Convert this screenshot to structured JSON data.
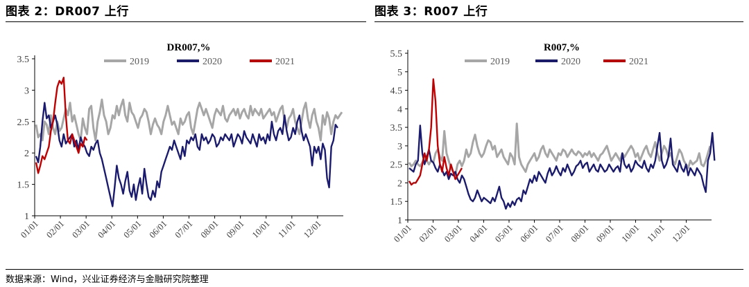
{
  "header": {
    "left_title": "图表 2：DR007 上行",
    "right_title": "图表 3：R007 上行"
  },
  "footer": {
    "source": "数据来源：Wind，兴业证券经济与金融研究院整理"
  },
  "colors": {
    "s2019": "#a6a6a6",
    "s2020": "#1a1a6e",
    "s2021": "#c00000",
    "axis": "#000000"
  },
  "chart_data": [
    {
      "type": "line",
      "title": "DR007,%",
      "xlabel": "",
      "ylabel": "",
      "x_ticks": [
        "01/01",
        "02/01",
        "03/01",
        "04/01",
        "05/01",
        "06/01",
        "07/01",
        "08/01",
        "09/01",
        "10/01",
        "11/01",
        "12/01"
      ],
      "ylim": [
        1,
        3.5
      ],
      "y_ticks": [
        "1",
        "1.5",
        "2",
        "2.5",
        "3",
        "3.5"
      ],
      "y_tick_values": [
        1,
        1.5,
        2,
        2.5,
        3,
        3.5
      ],
      "legend_position": "top",
      "grid": false,
      "series": [
        {
          "name": "2019",
          "key": "s2019",
          "values": [
            2.45,
            2.25,
            2.3,
            2.2,
            2.5,
            2.45,
            2.3,
            2.6,
            2.4,
            2.3,
            2.5,
            2.35,
            2.4,
            2.55,
            2.7,
            2.6,
            2.8,
            2.5,
            2.6,
            2.45,
            2.3,
            2.2,
            2.55,
            2.4,
            2.3,
            2.7,
            2.75,
            2.4,
            2.2,
            2.5,
            2.65,
            2.85,
            2.6,
            2.5,
            2.3,
            2.4,
            2.6,
            2.55,
            2.75,
            2.6,
            2.75,
            2.85,
            2.6,
            2.5,
            2.8,
            2.65,
            2.6,
            2.5,
            2.4,
            2.55,
            2.6,
            2.7,
            2.65,
            2.5,
            2.3,
            2.45,
            2.55,
            2.45,
            2.4,
            2.3,
            2.5,
            2.6,
            2.75,
            2.6,
            2.45,
            2.5,
            2.4,
            2.3,
            2.55,
            2.45,
            2.5,
            2.6,
            2.65,
            2.4,
            2.3,
            2.5,
            2.7,
            2.8,
            2.7,
            2.6,
            2.7,
            2.6,
            2.5,
            2.4,
            2.6,
            2.7,
            2.65,
            2.6,
            2.75,
            2.55,
            2.5,
            2.6,
            2.65,
            2.7,
            2.6,
            2.7,
            2.55,
            2.65,
            2.7,
            2.6,
            2.55,
            2.75,
            2.6,
            2.7,
            2.65,
            2.6,
            2.7,
            2.55,
            2.6,
            2.65,
            2.7,
            2.6,
            2.65,
            2.5,
            2.6,
            2.7,
            2.75,
            2.5,
            2.4,
            2.55,
            2.6,
            2.7,
            2.5,
            2.4,
            2.3,
            2.5,
            2.7,
            2.8,
            2.55,
            2.4,
            2.6,
            2.7,
            2.5,
            2.4,
            2.2,
            2.6,
            2.45,
            2.65,
            2.55,
            2.3,
            2.5,
            2.6,
            2.55,
            2.6,
            2.65
          ]
        },
        {
          "name": "2020",
          "key": "s2020",
          "values": [
            1.95,
            1.85,
            2.1,
            2.5,
            2.8,
            2.55,
            2.6,
            2.4,
            2.5,
            2.6,
            2.45,
            2.2,
            2.1,
            2.3,
            2.15,
            2.2,
            2.25,
            2.3,
            2.1,
            2.2,
            2.05,
            2.25,
            2.15,
            2.1,
            2.0,
            1.95,
            2.1,
            2.05,
            2.15,
            2.2,
            2.0,
            1.9,
            1.75,
            1.6,
            1.45,
            1.3,
            1.15,
            1.45,
            1.8,
            1.6,
            1.5,
            1.35,
            1.55,
            1.7,
            1.4,
            1.3,
            1.5,
            1.25,
            1.45,
            1.6,
            1.35,
            1.75,
            1.5,
            1.3,
            1.25,
            1.4,
            1.3,
            1.55,
            1.45,
            1.7,
            1.8,
            1.9,
            2.0,
            2.1,
            2.05,
            2.2,
            2.1,
            2.0,
            1.9,
            2.1,
            1.95,
            2.2,
            2.15,
            2.25,
            2.2,
            2.3,
            2.1,
            2.05,
            2.3,
            2.2,
            2.25,
            2.15,
            2.2,
            2.3,
            2.25,
            2.1,
            2.15,
            2.25,
            2.2,
            2.3,
            2.25,
            2.2,
            2.3,
            2.1,
            2.2,
            2.3,
            2.25,
            2.15,
            2.35,
            2.25,
            2.2,
            2.15,
            2.3,
            2.2,
            2.1,
            2.3,
            2.2,
            2.25,
            2.15,
            2.3,
            2.2,
            2.5,
            2.3,
            2.2,
            2.35,
            2.4,
            2.3,
            2.6,
            2.35,
            2.2,
            2.25,
            2.4,
            2.3,
            2.5,
            2.6,
            2.35,
            2.2,
            2.3,
            2.2,
            2.1,
            1.8,
            2.1,
            2.0,
            2.1,
            1.9,
            2.15,
            2.05,
            1.6,
            1.45,
            2.1,
            2.2,
            2.45,
            2.4
          ]
        },
        {
          "name": "2021",
          "key": "s2021",
          "values": [
            1.85,
            1.68,
            1.8,
            1.95,
            1.9,
            2.0,
            2.1,
            2.35,
            2.5,
            2.8,
            3.05,
            3.15,
            3.1,
            3.2,
            2.6,
            2.2,
            2.15,
            2.3,
            2.2,
            2.1,
            2.0,
            2.15,
            2.1,
            2.25,
            2.2
          ]
        }
      ]
    },
    {
      "type": "line",
      "title": "R007,%",
      "xlabel": "",
      "ylabel": "",
      "x_ticks": [
        "01/01",
        "02/01",
        "03/01",
        "04/01",
        "05/01",
        "06/01",
        "07/01",
        "08/01",
        "09/01",
        "10/01",
        "11/01",
        "12/01"
      ],
      "ylim": [
        1,
        5.5
      ],
      "y_ticks": [
        "1",
        "1.5",
        "2",
        "2.5",
        "3",
        "3.5",
        "4",
        "4.5",
        "5",
        "5.5"
      ],
      "y_tick_values": [
        1,
        1.5,
        2,
        2.5,
        3,
        3.5,
        4,
        4.5,
        5,
        5.5
      ],
      "legend_position": "top",
      "grid": false,
      "series": [
        {
          "name": "2019",
          "key": "s2019",
          "values": [
            2.55,
            2.45,
            2.5,
            2.6,
            2.5,
            2.45,
            2.55,
            2.7,
            2.6,
            2.5,
            2.6,
            2.55,
            2.8,
            2.9,
            2.7,
            2.6,
            3.4,
            2.8,
            2.6,
            2.4,
            2.3,
            2.2,
            2.5,
            2.6,
            2.45,
            2.6,
            2.9,
            2.7,
            2.8,
            3.1,
            3.3,
            3.0,
            2.8,
            2.7,
            2.8,
            3.0,
            3.15,
            3.1,
            2.9,
            3.0,
            2.7,
            2.8,
            2.9,
            2.7,
            2.6,
            2.5,
            2.8,
            2.7,
            2.5,
            3.6,
            2.7,
            2.5,
            2.4,
            2.3,
            2.5,
            2.6,
            2.7,
            2.8,
            2.6,
            2.7,
            2.9,
            3.0,
            2.8,
            2.7,
            2.9,
            2.8,
            2.7,
            2.6,
            2.8,
            2.75,
            2.9,
            2.85,
            2.7,
            2.8,
            2.9,
            2.8,
            2.75,
            2.85,
            2.8,
            2.7,
            2.8,
            2.75,
            2.85,
            2.7,
            2.8,
            2.7,
            2.6,
            2.75,
            2.8,
            2.9,
            3.0,
            2.8,
            2.6,
            2.7,
            2.8,
            2.7,
            2.6,
            2.8,
            2.7,
            2.8,
            2.9,
            3.0,
            2.9,
            2.7,
            2.8,
            2.6,
            2.75,
            2.9,
            3.0,
            2.8,
            2.7,
            2.9,
            3.1,
            2.8,
            2.6,
            2.8,
            3.0,
            2.9,
            2.7,
            2.8,
            2.6,
            2.5,
            2.7,
            2.9,
            2.8,
            2.6,
            2.5,
            2.4,
            2.6,
            2.5,
            2.55,
            2.6,
            2.8,
            2.5,
            2.45,
            2.6,
            2.8,
            3.0
          ]
        },
        {
          "name": "2020",
          "key": "s2020",
          "values": [
            2.4,
            2.35,
            2.3,
            2.5,
            2.6,
            3.55,
            2.8,
            2.5,
            2.7,
            2.9,
            2.6,
            2.55,
            2.4,
            2.3,
            2.5,
            2.35,
            2.2,
            2.3,
            2.1,
            2.25,
            2.2,
            2.3,
            2.1,
            2.0,
            2.2,
            2.1,
            1.9,
            1.7,
            1.55,
            1.5,
            1.6,
            1.8,
            1.65,
            1.5,
            1.6,
            1.55,
            1.5,
            1.45,
            1.6,
            1.5,
            1.7,
            1.9,
            1.6,
            1.5,
            1.3,
            1.45,
            1.35,
            1.5,
            1.4,
            1.55,
            1.6,
            1.5,
            1.8,
            1.7,
            1.9,
            2.1,
            2.0,
            2.2,
            2.05,
            2.3,
            2.2,
            2.1,
            2.0,
            2.25,
            2.4,
            2.2,
            2.3,
            2.45,
            2.3,
            2.2,
            2.4,
            2.3,
            2.5,
            2.35,
            2.2,
            2.3,
            2.45,
            2.5,
            2.6,
            2.4,
            2.5,
            2.55,
            2.3,
            2.4,
            2.5,
            2.35,
            2.3,
            2.5,
            2.4,
            2.3,
            2.35,
            2.5,
            2.4,
            2.3,
            2.4,
            2.45,
            2.3,
            2.8,
            2.5,
            2.4,
            2.5,
            2.3,
            2.4,
            2.6,
            2.5,
            2.45,
            2.4,
            2.6,
            2.4,
            2.3,
            2.5,
            2.4,
            2.6,
            3.0,
            3.35,
            2.6,
            2.4,
            2.5,
            2.7,
            3.2,
            2.5,
            2.4,
            2.3,
            2.6,
            2.4,
            2.3,
            2.5,
            2.2,
            2.4,
            2.3,
            2.2,
            2.4,
            2.3,
            2.2,
            1.95,
            1.75,
            2.6,
            2.8,
            3.35,
            2.6
          ]
        },
        {
          "name": "2021",
          "key": "s2021",
          "values": [
            2.05,
            1.95,
            2.0,
            2.0,
            2.1,
            2.2,
            2.5,
            2.8,
            2.6,
            2.9,
            3.5,
            4.8,
            4.2,
            3.0,
            2.5,
            2.3,
            2.7,
            2.4,
            2.2,
            2.5,
            2.3,
            2.1,
            2.2,
            2.3,
            2.4
          ]
        }
      ]
    }
  ]
}
